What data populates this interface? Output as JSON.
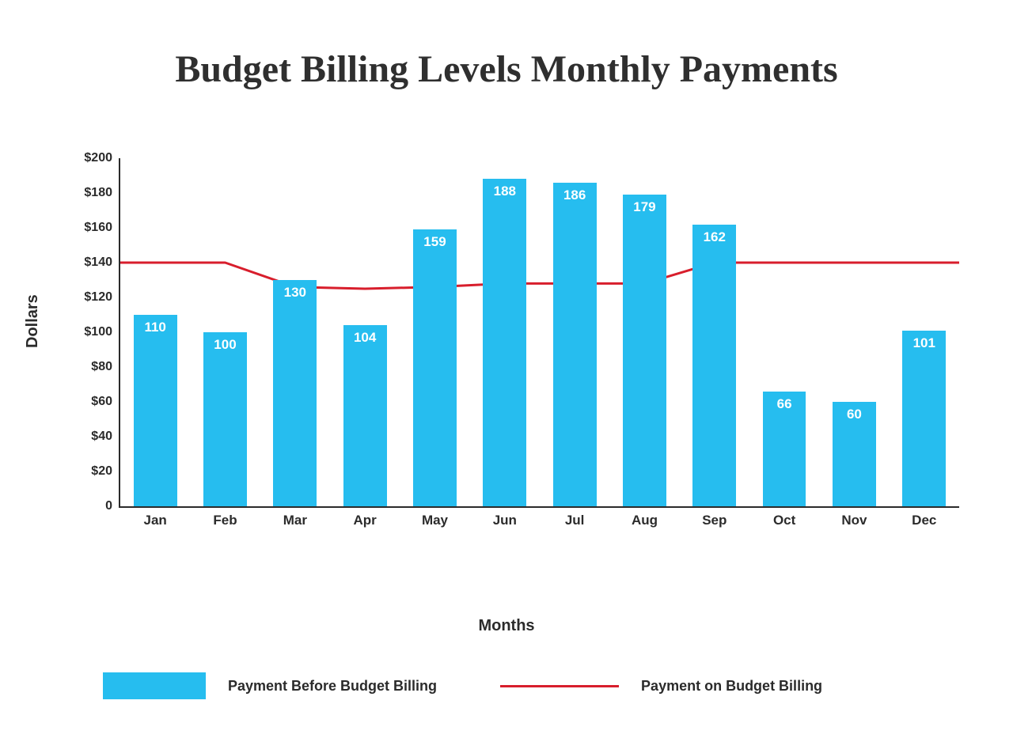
{
  "title": "Budget Billing Levels Monthly Payments",
  "chart": {
    "type": "bar+line",
    "background_color": "#ffffff",
    "axis_color": "#2b2b2b",
    "ylabel": "Dollars",
    "xlabel": "Months",
    "title_fontsize": 48,
    "label_fontsize": 20,
    "tick_fontsize": 16,
    "ylim": [
      0,
      200
    ],
    "ytick_step": 20,
    "yticks": [
      {
        "v": 0,
        "label": "0"
      },
      {
        "v": 20,
        "label": "$20"
      },
      {
        "v": 40,
        "label": "$40"
      },
      {
        "v": 60,
        "label": "$60"
      },
      {
        "v": 80,
        "label": "$80"
      },
      {
        "v": 100,
        "label": "$100"
      },
      {
        "v": 120,
        "label": "$120"
      },
      {
        "v": 140,
        "label": "$140"
      },
      {
        "v": 160,
        "label": "$160"
      },
      {
        "v": 180,
        "label": "$180"
      },
      {
        "v": 200,
        "label": "$200"
      }
    ],
    "categories": [
      "Jan",
      "Feb",
      "Mar",
      "Apr",
      "May",
      "Jun",
      "Jul",
      "Aug",
      "Sep",
      "Oct",
      "Nov",
      "Dec"
    ],
    "bars": {
      "label": "Payment Before Budget Billing",
      "color": "#26bdef",
      "value_label_color": "#ffffff",
      "value_label_fontsize": 17,
      "bar_width_fraction": 0.62,
      "values": [
        110,
        100,
        130,
        104,
        159,
        188,
        186,
        179,
        162,
        66,
        60,
        101
      ]
    },
    "line": {
      "label": "Payment on Budget Billing",
      "color": "#d81e2c",
      "line_width": 3,
      "values": [
        140,
        140,
        126,
        125,
        126,
        128,
        128,
        128,
        140,
        140,
        140,
        140
      ]
    }
  },
  "legend": {
    "bar_label": "Payment Before Budget Billing",
    "line_label": "Payment on Budget Billing"
  }
}
